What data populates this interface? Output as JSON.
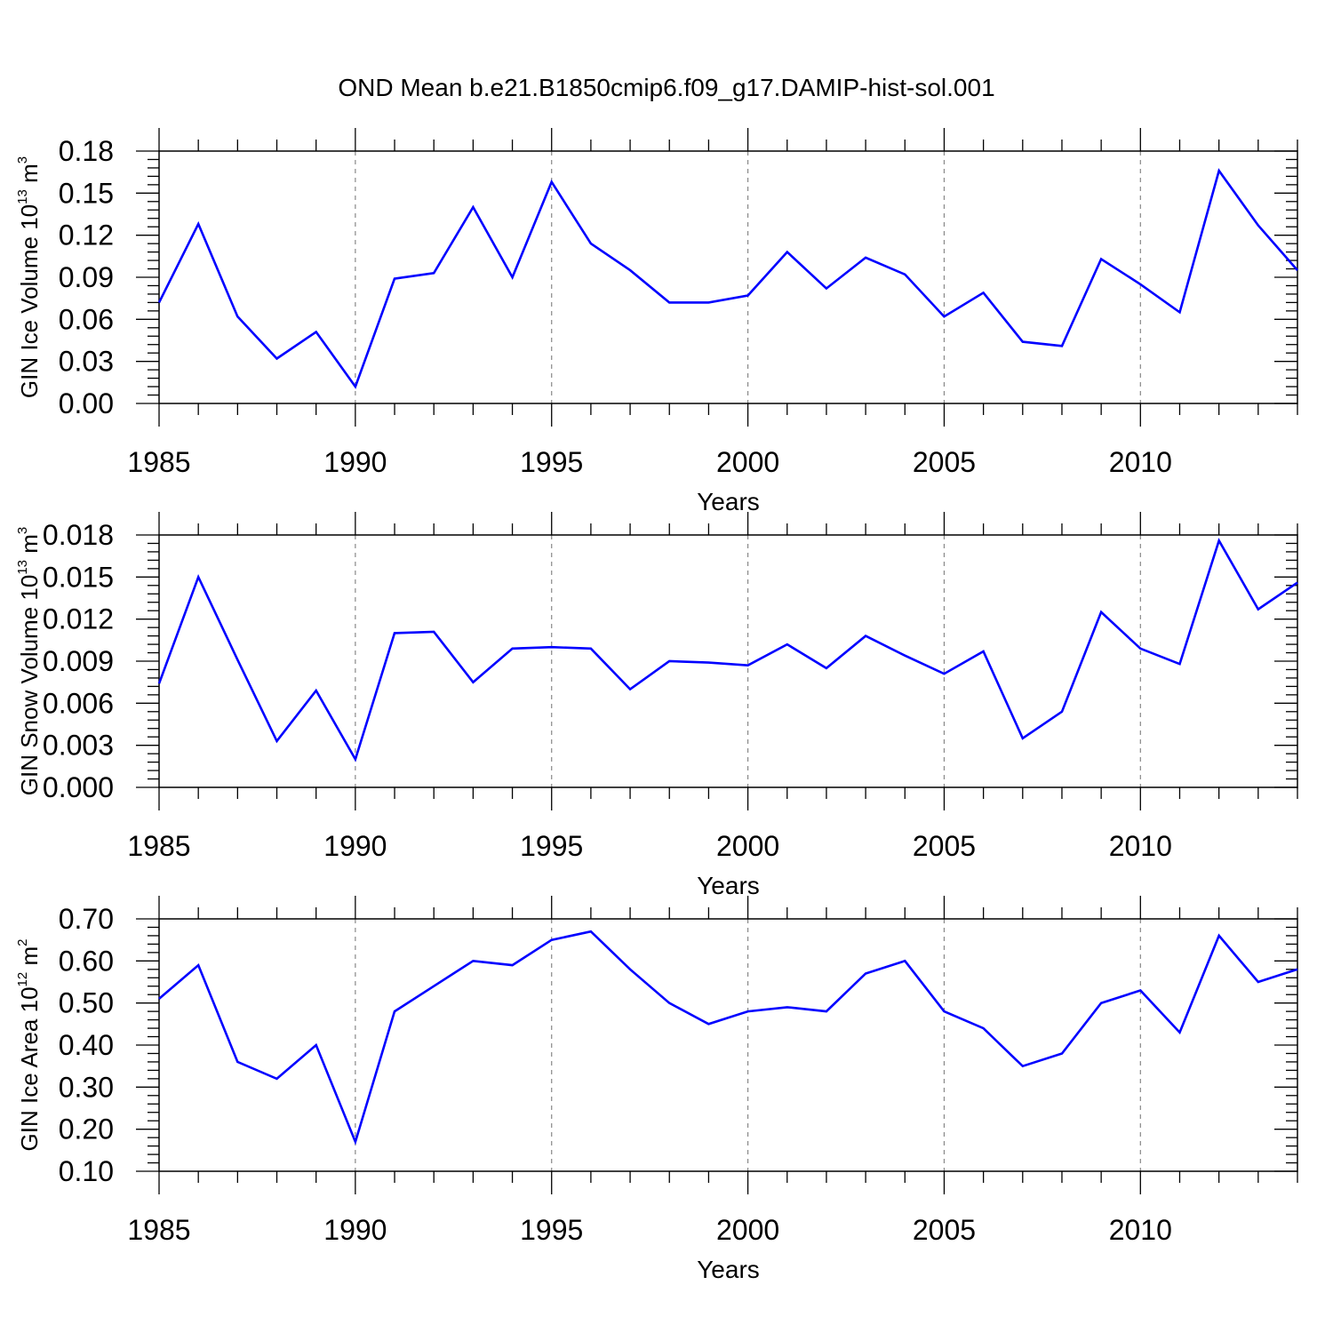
{
  "title": "OND Mean b.e21.B1850cmip6.f09_g17.DAMIP-hist-sol.001",
  "chart_data": [
    {
      "type": "line",
      "name": "ice-volume",
      "ylabel": "GIN Ice Volume 10",
      "ylabel_exponent": "13",
      "ylabel_unit": " m",
      "ylabel_unit_exponent": "3",
      "xlabel": "Years",
      "ylim": [
        0.0,
        0.18
      ],
      "xlim": [
        1985,
        2014
      ],
      "yticks": [
        "0.00",
        "0.03",
        "0.06",
        "0.09",
        "0.12",
        "0.15",
        "0.18"
      ],
      "xticks": [
        "1985",
        "1990",
        "1995",
        "2000",
        "2005",
        "2010"
      ],
      "color": "#0000ff",
      "x": [
        1985,
        1986,
        1987,
        1988,
        1989,
        1990,
        1991,
        1992,
        1993,
        1994,
        1995,
        1996,
        1997,
        1998,
        1999,
        2000,
        2001,
        2002,
        2003,
        2004,
        2005,
        2006,
        2007,
        2008,
        2009,
        2010,
        2011,
        2012,
        2013,
        2014
      ],
      "values": [
        0.072,
        0.128,
        0.062,
        0.032,
        0.051,
        0.012,
        0.089,
        0.093,
        0.14,
        0.09,
        0.158,
        0.114,
        0.095,
        0.072,
        0.072,
        0.077,
        0.108,
        0.082,
        0.104,
        0.092,
        0.062,
        0.079,
        0.044,
        0.041,
        0.103,
        0.085,
        0.065,
        0.166,
        0.127,
        0.095
      ]
    },
    {
      "type": "line",
      "name": "snow-volume",
      "ylabel": "GIN Snow Volume 10",
      "ylabel_exponent": "13",
      "ylabel_unit": " m",
      "ylabel_unit_exponent": "3",
      "xlabel": "Years",
      "ylim": [
        0.0,
        0.018
      ],
      "xlim": [
        1985,
        2014
      ],
      "yticks": [
        "0.000",
        "0.003",
        "0.006",
        "0.009",
        "0.012",
        "0.015",
        "0.018"
      ],
      "xticks": [
        "1985",
        "1990",
        "1995",
        "2000",
        "2005",
        "2010"
      ],
      "color": "#0000ff",
      "x": [
        1985,
        1986,
        1987,
        1988,
        1989,
        1990,
        1991,
        1992,
        1993,
        1994,
        1995,
        1996,
        1997,
        1998,
        1999,
        2000,
        2001,
        2002,
        2003,
        2004,
        2005,
        2006,
        2007,
        2008,
        2009,
        2010,
        2011,
        2012,
        2013,
        2014
      ],
      "values": [
        0.0074,
        0.015,
        0.0091,
        0.0033,
        0.0069,
        0.002,
        0.011,
        0.0111,
        0.0075,
        0.0099,
        0.01,
        0.0099,
        0.007,
        0.009,
        0.0089,
        0.0087,
        0.0102,
        0.0085,
        0.0108,
        0.0094,
        0.0081,
        0.0097,
        0.0035,
        0.0054,
        0.0125,
        0.0099,
        0.0088,
        0.0176,
        0.0127,
        0.0146
      ]
    },
    {
      "type": "line",
      "name": "ice-area",
      "ylabel": "GIN Ice Area 10",
      "ylabel_exponent": "12",
      "ylabel_unit": " m",
      "ylabel_unit_exponent": "2",
      "xlabel": "Years",
      "ylim": [
        0.1,
        0.7
      ],
      "xlim": [
        1985,
        2014
      ],
      "yticks": [
        "0.10",
        "0.20",
        "0.30",
        "0.40",
        "0.50",
        "0.60",
        "0.70"
      ],
      "xticks": [
        "1985",
        "1990",
        "1995",
        "2000",
        "2005",
        "2010"
      ],
      "color": "#0000ff",
      "x": [
        1985,
        1986,
        1987,
        1988,
        1989,
        1990,
        1991,
        1992,
        1993,
        1994,
        1995,
        1996,
        1997,
        1998,
        1999,
        2000,
        2001,
        2002,
        2003,
        2004,
        2005,
        2006,
        2007,
        2008,
        2009,
        2010,
        2011,
        2012,
        2013,
        2014
      ],
      "values": [
        0.51,
        0.59,
        0.36,
        0.32,
        0.4,
        0.17,
        0.48,
        0.54,
        0.6,
        0.59,
        0.65,
        0.67,
        0.58,
        0.5,
        0.45,
        0.48,
        0.49,
        0.48,
        0.57,
        0.6,
        0.48,
        0.44,
        0.35,
        0.38,
        0.5,
        0.53,
        0.43,
        0.66,
        0.55,
        0.58
      ]
    }
  ]
}
